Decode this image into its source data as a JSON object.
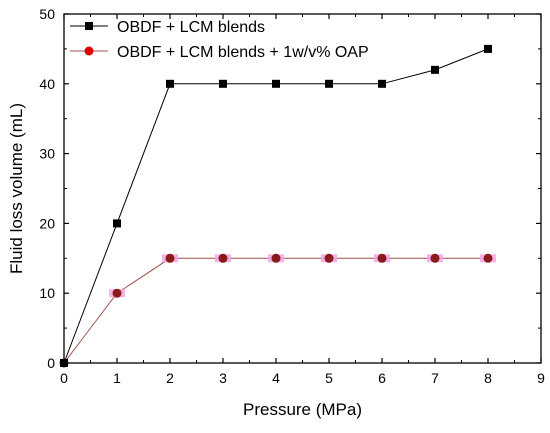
{
  "chart_data": {
    "type": "line",
    "title": "",
    "xlabel": "Pressure (MPa)",
    "ylabel": "Fluid loss volume (mL)",
    "xlim": [
      0,
      9
    ],
    "ylim": [
      0,
      50
    ],
    "xticks": [
      0,
      1,
      2,
      3,
      4,
      5,
      6,
      7,
      8,
      9
    ],
    "yticks": [
      0,
      10,
      20,
      30,
      40,
      50
    ],
    "grid": false,
    "legend_position": "top-left",
    "series": [
      {
        "name": "OBDF + LCM blends",
        "marker": "square",
        "color": "#000000",
        "x": [
          0,
          1,
          2,
          3,
          4,
          5,
          6,
          7,
          8
        ],
        "y": [
          0,
          20,
          40,
          40,
          40,
          40,
          40,
          42,
          45
        ]
      },
      {
        "name": "OBDF + LCM blends + 1w/v% OAP",
        "marker": "circle",
        "color": "#8b1a1a",
        "line_color": "#a0524a",
        "legend_marker_color": "#e00000",
        "halo_color": "#f2a6e6",
        "x": [
          0,
          1,
          2,
          3,
          4,
          5,
          6,
          7,
          8
        ],
        "y": [
          0,
          10,
          15,
          15,
          15,
          15,
          15,
          15,
          15
        ]
      }
    ]
  }
}
